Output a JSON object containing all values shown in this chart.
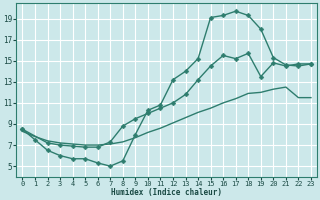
{
  "bg_color": "#cce8ea",
  "grid_color": "#b0d4d8",
  "line_color": "#2e7d6e",
  "xlabel": "Humidex (Indice chaleur)",
  "xlim": [
    -0.5,
    23.5
  ],
  "ylim": [
    4.0,
    20.5
  ],
  "xticks": [
    0,
    1,
    2,
    3,
    4,
    5,
    6,
    7,
    8,
    9,
    10,
    11,
    12,
    13,
    14,
    15,
    16,
    17,
    18,
    19,
    20,
    21,
    22,
    23
  ],
  "yticks": [
    5,
    7,
    9,
    11,
    13,
    15,
    17,
    19
  ],
  "line1_x": [
    0,
    1,
    2,
    3,
    4,
    5,
    6,
    7,
    8,
    9,
    10,
    11,
    12,
    13,
    14,
    15,
    16,
    17,
    18,
    19,
    20,
    21,
    22,
    23
  ],
  "line1_y": [
    8.5,
    7.5,
    6.5,
    6.0,
    5.7,
    5.7,
    5.3,
    5.0,
    5.5,
    8.0,
    10.3,
    10.8,
    13.2,
    14.0,
    15.2,
    19.1,
    19.3,
    19.7,
    19.3,
    18.0,
    15.3,
    14.6,
    14.5,
    14.7
  ],
  "line2_x": [
    0,
    2,
    3,
    4,
    5,
    6,
    7,
    8,
    9,
    10,
    11,
    12,
    13,
    14,
    15,
    16,
    17,
    18,
    19,
    20,
    21,
    22,
    23
  ],
  "line2_y": [
    8.5,
    7.2,
    7.0,
    6.9,
    6.8,
    6.8,
    7.3,
    8.8,
    9.5,
    10.0,
    10.5,
    11.0,
    11.8,
    13.2,
    14.5,
    15.5,
    15.2,
    15.7,
    13.5,
    14.8,
    14.5,
    14.7,
    14.7
  ],
  "line3_x": [
    0,
    1,
    2,
    3,
    4,
    5,
    6,
    7,
    8,
    9,
    10,
    11,
    12,
    13,
    14,
    15,
    16,
    17,
    18,
    19,
    20,
    21,
    22,
    23
  ],
  "line3_y": [
    8.3,
    7.8,
    7.4,
    7.2,
    7.1,
    7.0,
    7.0,
    7.1,
    7.3,
    7.7,
    8.2,
    8.6,
    9.1,
    9.6,
    10.1,
    10.5,
    11.0,
    11.4,
    11.9,
    12.0,
    12.3,
    12.5,
    11.5,
    11.5
  ]
}
